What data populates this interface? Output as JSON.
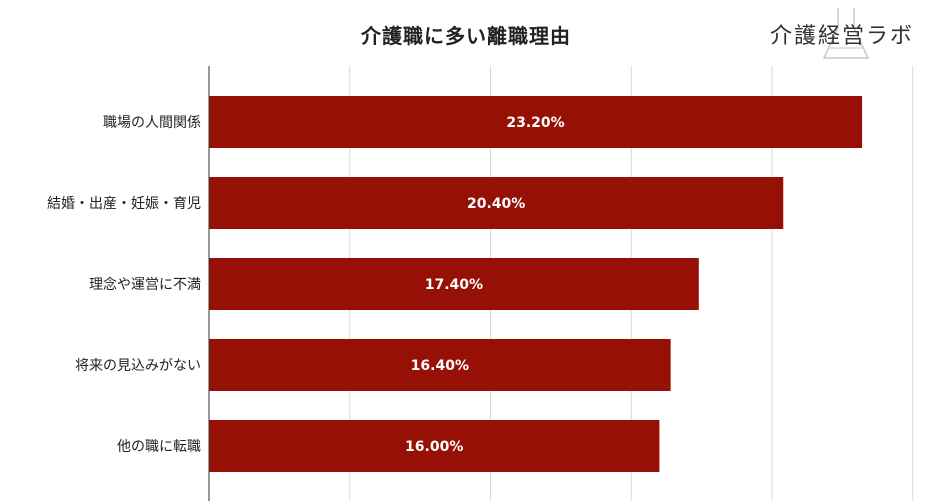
{
  "brand": {
    "name": "介護経営ラボ"
  },
  "chart_data": {
    "type": "bar",
    "orientation": "horizontal",
    "title": "介護職に多い離職理由",
    "categories": [
      "職場の人間関係",
      "結婚・出産・妊娠・育児",
      "理念や運営に不満",
      "将来の見込みがない",
      "他の職に転職"
    ],
    "values": [
      23.2,
      20.4,
      17.4,
      16.4,
      16.0
    ],
    "value_labels": [
      "23.20%",
      "20.40%",
      "17.40%",
      "16.40%",
      "16.00%"
    ],
    "xlim": [
      0,
      25
    ],
    "grid": true,
    "legend": "none",
    "bar_color": "#961006",
    "grid_color": "#d9d9d9",
    "axis_color": "#333333"
  }
}
